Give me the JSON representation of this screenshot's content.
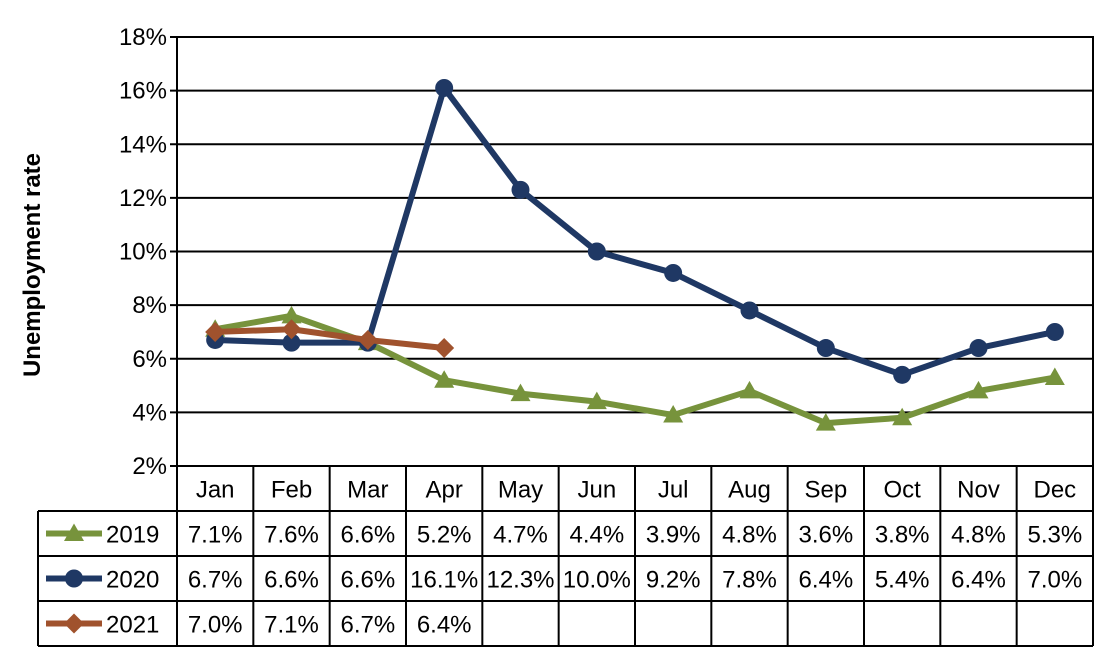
{
  "chart_data": {
    "type": "line",
    "title": "",
    "xlabel": "",
    "ylabel": "Unemployment rate",
    "ylim": [
      2,
      18
    ],
    "yticks": [
      2,
      4,
      6,
      8,
      10,
      12,
      14,
      16,
      18
    ],
    "ytick_labels": [
      "2%",
      "4%",
      "6%",
      "8%",
      "10%",
      "12%",
      "14%",
      "16%",
      "18%"
    ],
    "grid": "horizontal",
    "legend": "data-table-left",
    "categories": [
      "Jan",
      "Feb",
      "Mar",
      "Apr",
      "May",
      "Jun",
      "Jul",
      "Aug",
      "Sep",
      "Oct",
      "Nov",
      "Dec"
    ],
    "series": [
      {
        "name": "2019",
        "color": "#77933c",
        "marker": "triangle",
        "values": [
          7.1,
          7.6,
          6.6,
          5.2,
          4.7,
          4.4,
          3.9,
          4.8,
          3.6,
          3.8,
          4.8,
          5.3
        ],
        "labels": [
          "7.1%",
          "7.6%",
          "6.6%",
          "5.2%",
          "4.7%",
          "4.4%",
          "3.9%",
          "4.8%",
          "3.6%",
          "3.8%",
          "4.8%",
          "5.3%"
        ]
      },
      {
        "name": "2020",
        "color": "#1f3864",
        "marker": "circle",
        "values": [
          6.7,
          6.6,
          6.6,
          16.1,
          12.3,
          10.0,
          9.2,
          7.8,
          6.4,
          5.4,
          6.4,
          7.0
        ],
        "labels": [
          "6.7%",
          "6.6%",
          "6.6%",
          "16.1%",
          "12.3%",
          "10.0%",
          "9.2%",
          "7.8%",
          "6.4%",
          "5.4%",
          "6.4%",
          "7.0%"
        ]
      },
      {
        "name": "2021",
        "color": "#a0522d",
        "marker": "diamond",
        "values": [
          7.0,
          7.1,
          6.7,
          6.4,
          null,
          null,
          null,
          null,
          null,
          null,
          null,
          null
        ],
        "labels": [
          "7.0%",
          "7.1%",
          "6.7%",
          "6.4%",
          "",
          "",
          "",
          "",
          "",
          "",
          "",
          ""
        ]
      }
    ]
  }
}
